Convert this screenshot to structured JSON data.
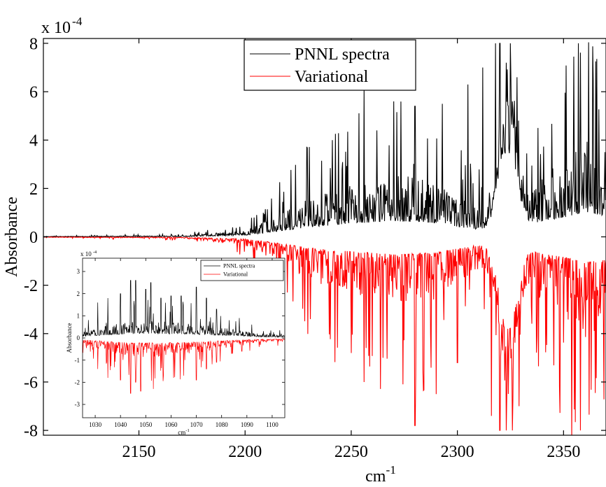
{
  "chart_data": [
    {
      "type": "line",
      "title": "",
      "xlabel": "cm",
      "xlabel_sup": "-1",
      "ylabel": "Absorbance",
      "y_multiplier": "x 10",
      "y_multiplier_exp": "-4",
      "xlim": [
        2105,
        2370
      ],
      "ylim": [
        -8.2,
        8.2
      ],
      "xticks": [
        2150,
        2200,
        2250,
        2300,
        2350
      ],
      "xtick_labels": [
        "2150",
        "2200",
        "2250",
        "2300",
        "2350"
      ],
      "yticks": [
        -8,
        -6,
        -4,
        -2,
        0,
        2,
        4,
        6,
        8
      ],
      "ytick_labels": [
        "-8",
        "-6",
        "-4",
        "-2",
        "0",
        "2",
        "4",
        "6",
        "8"
      ],
      "grid": false,
      "legend_position": "top-center",
      "series": [
        {
          "name": "PNNL spectra",
          "color": "#000000",
          "direction": 1,
          "band_center": 2324,
          "band_width": 6,
          "band_peak": 5.5,
          "envelope_points": [
            [
              2105,
              0.02
            ],
            [
              2170,
              0.05
            ],
            [
              2200,
              0.25
            ],
            [
              2215,
              0.9
            ],
            [
              2230,
              1.6
            ],
            [
              2250,
              2.2
            ],
            [
              2270,
              2.6
            ],
            [
              2290,
              2.3
            ],
            [
              2305,
              1.4
            ],
            [
              2315,
              1.0
            ],
            [
              2330,
              1.0
            ],
            [
              2340,
              2.6
            ],
            [
              2350,
              3.2
            ],
            [
              2360,
              4.0
            ],
            [
              2370,
              3.5
            ]
          ],
          "peaks": [
            [
              2256,
              6.1
            ],
            [
              2270,
              5.6
            ],
            [
              2280,
              5.4
            ],
            [
              2293,
              5.5
            ],
            [
              2305,
              6.3
            ],
            [
              2312,
              7.0
            ],
            [
              2318,
              8.0
            ],
            [
              2320,
              8.0
            ],
            [
              2323,
              7.2
            ],
            [
              2325,
              8.0
            ],
            [
              2328,
              6.6
            ],
            [
              2357,
              8.0
            ],
            [
              2364,
              6.5
            ],
            [
              2338,
              4.5
            ],
            [
              2262,
              4.4
            ]
          ]
        },
        {
          "name": "Variational",
          "color": "#ff0000",
          "direction": -1,
          "band_center": 2324,
          "band_width": 6,
          "band_peak": 5.8,
          "envelope_points": [
            [
              2105,
              0.02
            ],
            [
              2170,
              0.06
            ],
            [
              2200,
              0.35
            ],
            [
              2215,
              1.0
            ],
            [
              2230,
              1.8
            ],
            [
              2250,
              2.4
            ],
            [
              2270,
              2.9
            ],
            [
              2290,
              2.6
            ],
            [
              2305,
              1.6
            ],
            [
              2315,
              1.1
            ],
            [
              2330,
              1.1
            ],
            [
              2340,
              2.8
            ],
            [
              2350,
              3.3
            ],
            [
              2360,
              4.2
            ],
            [
              2370,
              3.8
            ]
          ],
          "peaks": [
            [
              2220,
              2.3
            ],
            [
              2250,
              4.8
            ],
            [
              2256,
              6.0
            ],
            [
              2265,
              5.0
            ],
            [
              2280,
              7.8
            ],
            [
              2290,
              6.5
            ],
            [
              2300,
              5.2
            ],
            [
              2316,
              7.4
            ],
            [
              2320,
              8.0
            ],
            [
              2323,
              8.0
            ],
            [
              2326,
              8.0
            ],
            [
              2329,
              7.0
            ],
            [
              2348,
              6.2
            ],
            [
              2358,
              8.0
            ],
            [
              2365,
              5.3
            ]
          ]
        }
      ]
    },
    {
      "type": "line",
      "title": "",
      "xlabel": "cm",
      "xlabel_sup": "-1",
      "ylabel": "Absorbance",
      "y_multiplier": "x 10",
      "y_multiplier_exp": "-4",
      "xlim": [
        1025,
        1105
      ],
      "ylim": [
        -3.6,
        3.6
      ],
      "xticks": [
        1030,
        1040,
        1050,
        1060,
        1070,
        1080,
        1090,
        1100
      ],
      "xtick_labels": [
        "1030",
        "1040",
        "1050",
        "1060",
        "1070",
        "1080",
        "1090",
        "1100"
      ],
      "yticks": [
        -3,
        -2,
        -1,
        0,
        1,
        2,
        3
      ],
      "ytick_labels": [
        "-3",
        "-2",
        "-1",
        "0",
        "1",
        "2",
        "3"
      ],
      "grid": false,
      "legend_position": "top-right",
      "series": [
        {
          "name": "PNNL spectra",
          "color": "#000000",
          "direction": 1,
          "envelope_points": [
            [
              1025,
              0.3
            ],
            [
              1045,
              0.8
            ],
            [
              1065,
              0.7
            ],
            [
              1085,
              0.4
            ],
            [
              1095,
              0.2
            ],
            [
              1105,
              0.15
            ]
          ],
          "peaks": [
            [
              1031,
              1.6
            ],
            [
              1035,
              1.8
            ],
            [
              1040,
              2.0
            ],
            [
              1044,
              2.6
            ],
            [
              1046,
              2.6
            ],
            [
              1050,
              2.2
            ],
            [
              1052,
              2.5
            ],
            [
              1056,
              1.8
            ],
            [
              1060,
              1.9
            ],
            [
              1064,
              1.9
            ],
            [
              1070,
              2.3
            ],
            [
              1074,
              1.8
            ],
            [
              1078,
              1.3
            ],
            [
              1083,
              0.8
            ],
            [
              1087,
              0.9
            ]
          ]
        },
        {
          "name": "Variational",
          "color": "#ff0000",
          "direction": -1,
          "envelope_points": [
            [
              1025,
              0.3
            ],
            [
              1045,
              0.9
            ],
            [
              1065,
              0.8
            ],
            [
              1085,
              0.4
            ],
            [
              1095,
              0.25
            ],
            [
              1105,
              0.2
            ]
          ],
          "peaks": [
            [
              1031,
              1.4
            ],
            [
              1035,
              1.8
            ],
            [
              1040,
              1.9
            ],
            [
              1044,
              2.5
            ],
            [
              1046,
              2.0
            ],
            [
              1048,
              2.4
            ],
            [
              1053,
              2.3
            ],
            [
              1057,
              1.7
            ],
            [
              1061,
              1.8
            ],
            [
              1065,
              1.7
            ],
            [
              1070,
              1.9
            ],
            [
              1074,
              1.4
            ],
            [
              1078,
              1.1
            ],
            [
              1084,
              0.7
            ],
            [
              1088,
              0.6
            ]
          ]
        }
      ]
    }
  ]
}
